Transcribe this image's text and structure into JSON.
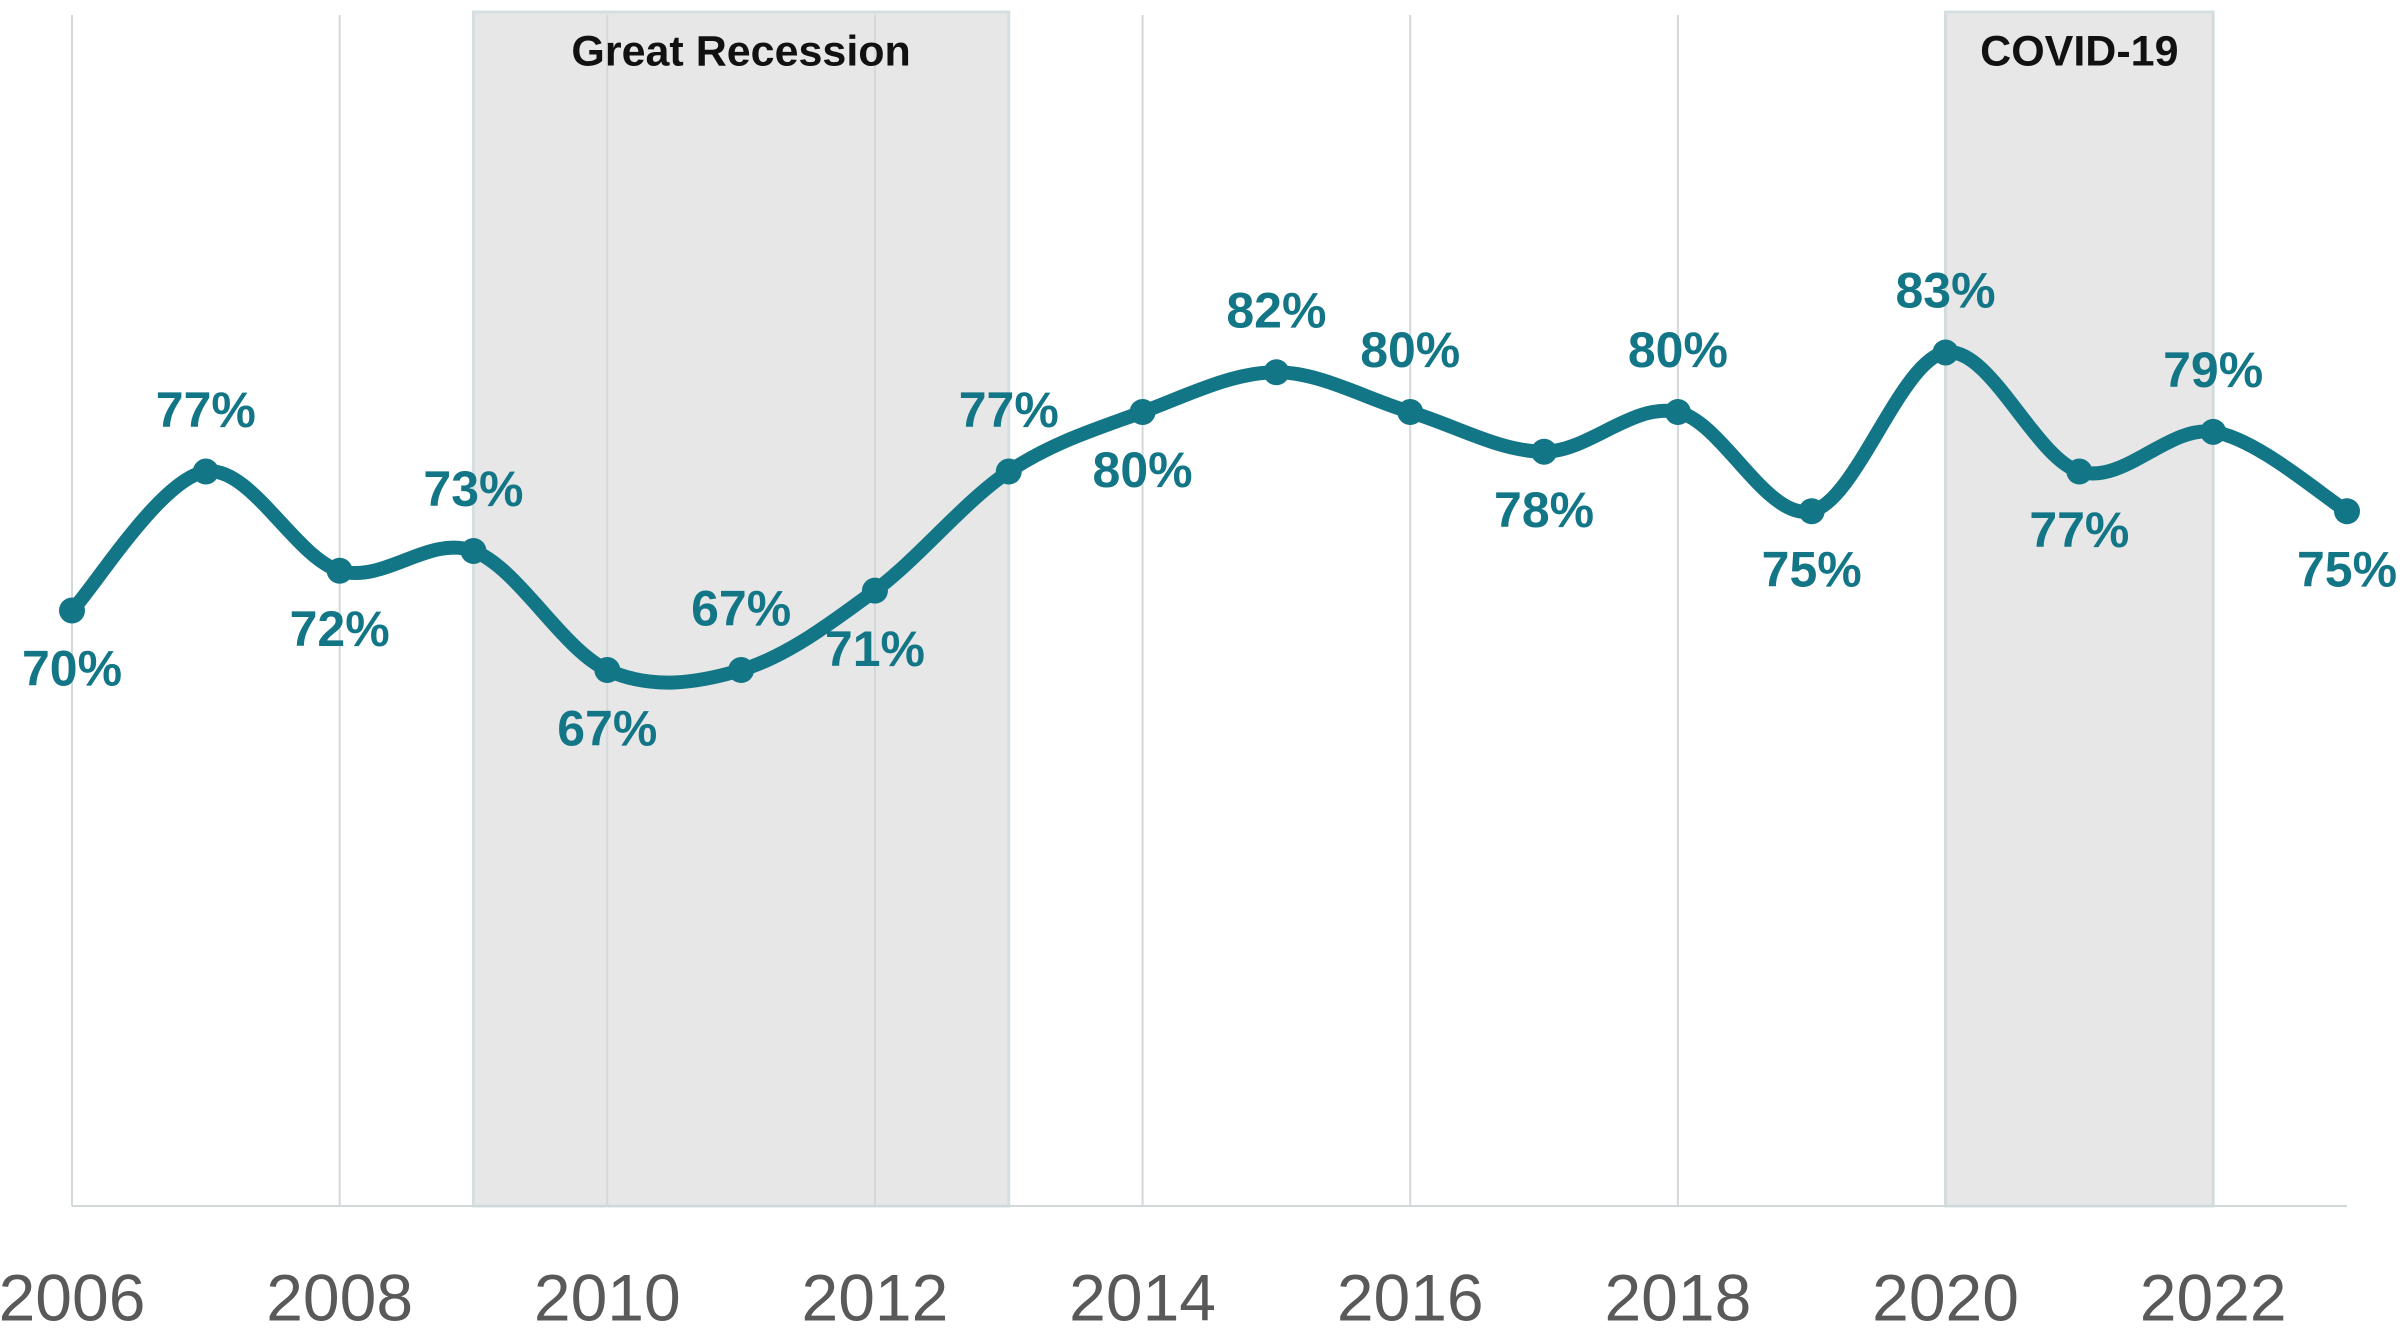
{
  "chart_data": {
    "type": "line",
    "x": [
      2006,
      2007,
      2008,
      2009,
      2010,
      2011,
      2012,
      2013,
      2014,
      2015,
      2016,
      2017,
      2018,
      2019,
      2020,
      2021,
      2022,
      2023
    ],
    "series": [
      {
        "color": "#137686",
        "values": [
          70,
          77,
          72,
          73,
          67,
          67,
          71,
          77,
          80,
          82,
          80,
          78,
          80,
          75,
          83,
          77,
          79,
          75
        ],
        "value_labels": [
          "70%",
          "77%",
          "72%",
          "73%",
          "67%",
          "67%",
          "71%",
          "77%",
          "80%",
          "82%",
          "80%",
          "78%",
          "80%",
          "75%",
          "83%",
          "77%",
          "79%",
          "75%"
        ]
      }
    ],
    "xlim": [
      2006,
      2023
    ],
    "xticks": [
      2006,
      2008,
      2010,
      2012,
      2014,
      2016,
      2018,
      2020,
      2022
    ],
    "ylim": [
      40,
      100
    ],
    "grid": true,
    "annotations": [
      {
        "text": "Great Recession",
        "x_start": 2009,
        "x_end": 2013
      },
      {
        "text": "COVID-19",
        "x_start": 2020,
        "x_end": 2022
      }
    ]
  }
}
